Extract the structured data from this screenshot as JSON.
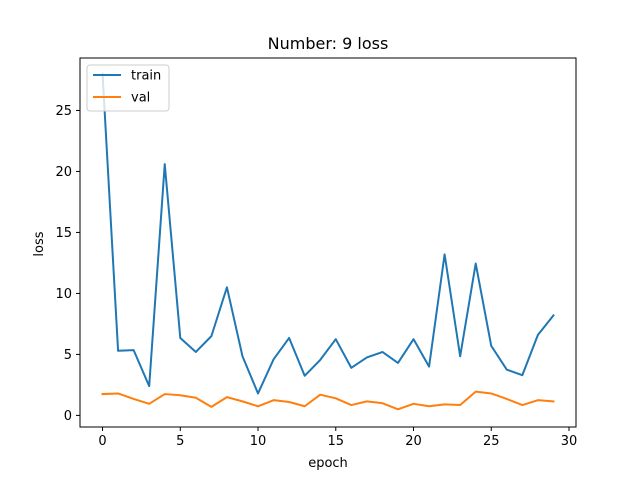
{
  "chart_data": {
    "type": "line",
    "title": "Number: 9 loss",
    "xlabel": "epoch",
    "ylabel": "loss",
    "x": [
      0,
      1,
      2,
      3,
      4,
      5,
      6,
      7,
      8,
      9,
      10,
      11,
      12,
      13,
      14,
      15,
      16,
      17,
      18,
      19,
      20,
      21,
      22,
      23,
      24,
      25,
      26,
      27,
      28,
      29
    ],
    "xlim": [
      -1.45,
      30.45
    ],
    "ylim": [
      -0.95,
      29.3
    ],
    "xticks": [
      0,
      5,
      10,
      15,
      20,
      25,
      30
    ],
    "yticks": [
      0,
      5,
      10,
      15,
      20,
      25
    ],
    "grid": false,
    "legend_placement": "top-left",
    "series": [
      {
        "name": "train",
        "color": "#1f77b4",
        "values": [
          28.0,
          5.3,
          5.35,
          2.4,
          20.6,
          6.35,
          5.2,
          6.5,
          10.5,
          4.85,
          1.8,
          4.6,
          6.35,
          3.25,
          4.55,
          6.25,
          3.9,
          4.75,
          5.2,
          4.3,
          6.25,
          4.0,
          13.2,
          4.85,
          12.45,
          5.7,
          3.75,
          3.3,
          6.6,
          8.2
        ]
      },
      {
        "name": "val",
        "color": "#ff7f0e",
        "values": [
          1.75,
          1.8,
          1.35,
          0.95,
          1.75,
          1.65,
          1.45,
          0.7,
          1.5,
          1.15,
          0.75,
          1.25,
          1.1,
          0.75,
          1.7,
          1.4,
          0.85,
          1.15,
          1.0,
          0.5,
          0.95,
          0.75,
          0.9,
          0.85,
          1.95,
          1.8,
          1.35,
          0.85,
          1.25,
          1.15
        ]
      }
    ]
  }
}
